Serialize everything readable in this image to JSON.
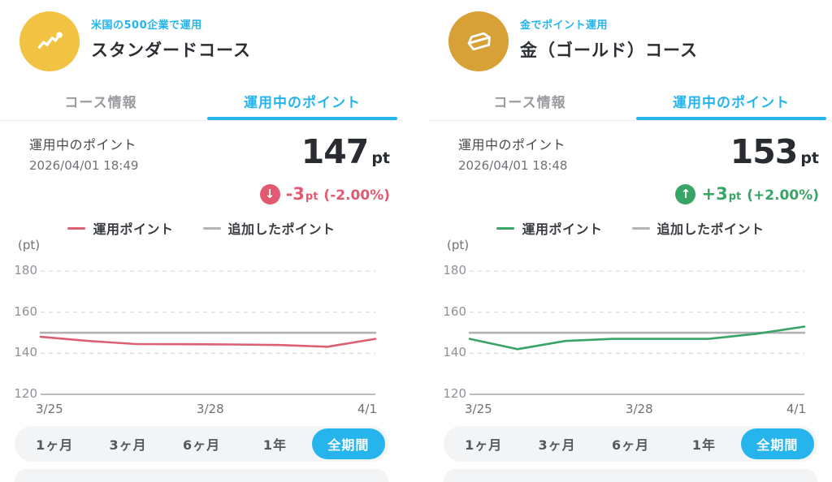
{
  "colors": {
    "accent": "#25b4ec",
    "negative": "#e25a70",
    "positive": "#38a466",
    "added_points_line": "#b3b3b6",
    "standard_icon_bg": "#f2c243",
    "gold_icon_bg": "#d7a138"
  },
  "panels": [
    {
      "header": {
        "icon": "trend-up-icon",
        "icon_bg": "#f2c243",
        "subtitle": "米国の500企業で運用",
        "title": "スタンダードコース"
      },
      "tabs": [
        {
          "label": "コース情報",
          "active": false
        },
        {
          "label": "運用中のポイント",
          "active": true
        }
      ],
      "stats": {
        "label": "運用中のポイント",
        "timestamp": "2026/04/01 18:49",
        "value": "147",
        "unit": "pt",
        "change": {
          "direction": "down",
          "arrow": "↓",
          "amount": "-3",
          "unit": "pt",
          "percent": "(-2.00%)",
          "color": "#e25a70"
        }
      },
      "legend": [
        {
          "label": "運用ポイント",
          "color": "#dc5f74"
        },
        {
          "label": "追加したポイント",
          "color": "#b3b3b6"
        }
      ],
      "periods": [
        {
          "label": "1ヶ月",
          "active": false
        },
        {
          "label": "3ヶ月",
          "active": false
        },
        {
          "label": "6ヶ月",
          "active": false
        },
        {
          "label": "1年",
          "active": false
        },
        {
          "label": "全期間",
          "active": true
        }
      ]
    },
    {
      "header": {
        "icon": "gold-ingot-icon",
        "icon_bg": "#d7a138",
        "subtitle": "金でポイント運用",
        "title": "金（ゴールド）コース"
      },
      "tabs": [
        {
          "label": "コース情報",
          "active": false
        },
        {
          "label": "運用中のポイント",
          "active": true
        }
      ],
      "stats": {
        "label": "運用中のポイント",
        "timestamp": "2026/04/01 18:48",
        "value": "153",
        "unit": "pt",
        "change": {
          "direction": "up",
          "arrow": "↑",
          "amount": "+3",
          "unit": "pt",
          "percent": "(+2.00%)",
          "color": "#38a466"
        }
      },
      "legend": [
        {
          "label": "運用ポイント",
          "color": "#38a466"
        },
        {
          "label": "追加したポイント",
          "color": "#b3b3b6"
        }
      ],
      "periods": [
        {
          "label": "1ヶ月",
          "active": false
        },
        {
          "label": "3ヶ月",
          "active": false
        },
        {
          "label": "6ヶ月",
          "active": false
        },
        {
          "label": "1年",
          "active": false
        },
        {
          "label": "全期間",
          "active": true
        }
      ]
    }
  ],
  "chart_data": [
    {
      "type": "line",
      "title": "スタンダードコース 運用中のポイント推移",
      "x": [
        "3/25",
        "3/26",
        "3/27",
        "3/28",
        "3/29",
        "3/30",
        "3/31",
        "4/1"
      ],
      "xticks_shown": [
        "3/25",
        "3/28",
        "4/1"
      ],
      "series": [
        {
          "name": "運用ポイント",
          "color": "#dc5f74",
          "values": [
            148,
            146,
            144.5,
            144.4,
            144.3,
            144,
            143.2,
            147
          ]
        },
        {
          "name": "追加したポイント",
          "color": "#b3b3b6",
          "values": [
            150,
            150,
            150,
            150,
            150,
            150,
            150,
            150
          ]
        }
      ],
      "ylabel": "(pt)",
      "yticks": [
        180,
        160,
        140,
        120
      ],
      "ylim": [
        120,
        185
      ],
      "grid": "dashed-horizontal",
      "legend_position": "top-center"
    },
    {
      "type": "line",
      "title": "金（ゴールド）コース 運用中のポイント推移",
      "x": [
        "3/25",
        "3/26",
        "3/27",
        "3/28",
        "3/29",
        "3/30",
        "3/31",
        "4/1"
      ],
      "xticks_shown": [
        "3/25",
        "3/28",
        "4/1"
      ],
      "series": [
        {
          "name": "運用ポイント",
          "color": "#38a466",
          "values": [
            147,
            142,
            146,
            147,
            147,
            147,
            149.5,
            153
          ]
        },
        {
          "name": "追加したポイント",
          "color": "#b3b3b6",
          "values": [
            150,
            150,
            150,
            150,
            150,
            150,
            150,
            150
          ]
        }
      ],
      "ylabel": "(pt)",
      "yticks": [
        180,
        160,
        140,
        120
      ],
      "ylim": [
        120,
        185
      ],
      "grid": "dashed-horizontal",
      "legend_position": "top-center"
    }
  ]
}
